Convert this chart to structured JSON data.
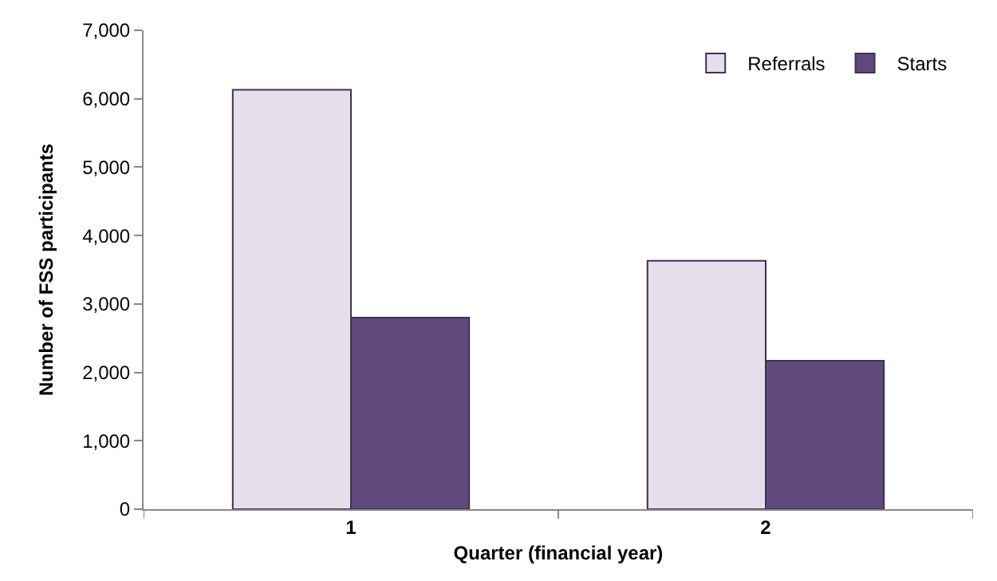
{
  "chart_data": {
    "type": "bar",
    "xlabel": "Quarter (financial year)",
    "ylabel": "Number of FSS participants",
    "categories": [
      "1",
      "2"
    ],
    "series": [
      {
        "name": "Referrals",
        "color": "#e5dfec",
        "values": [
          6130,
          3630
        ]
      },
      {
        "name": "Starts",
        "color": "#604a7b",
        "values": [
          2800,
          2170
        ]
      }
    ],
    "ylim": [
      0,
      7000
    ],
    "yticks": [
      {
        "value": 0,
        "label": "0"
      },
      {
        "value": 1000,
        "label": "1,000"
      },
      {
        "value": 2000,
        "label": "2,000"
      },
      {
        "value": 3000,
        "label": "3,000"
      },
      {
        "value": 4000,
        "label": "4,000"
      },
      {
        "value": 5000,
        "label": "5,000"
      },
      {
        "value": 6000,
        "label": "6,000"
      },
      {
        "value": 7000,
        "label": "7,000"
      }
    ],
    "legend": "top right"
  }
}
